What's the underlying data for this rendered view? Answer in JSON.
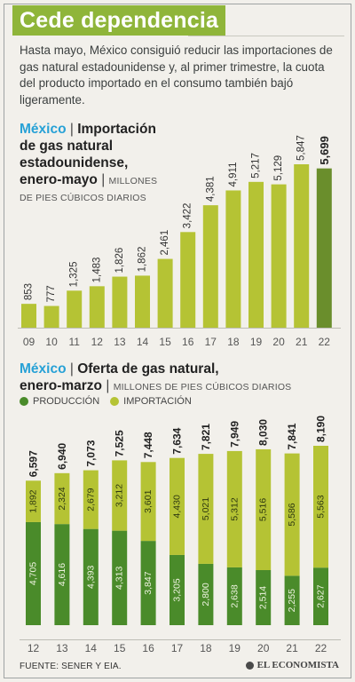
{
  "header": {
    "title": "Cede dependencia"
  },
  "intro": "Hasta mayo, México consiguió reducir las importaciones de gas natural estadounidense y, al primer trimestre, la cuota del producto importado en el consumo también bajó ligeramente.",
  "chart1": {
    "country": "México",
    "title_line1": "Importación",
    "title_line2": "de gas natural",
    "title_line3": "estadounidense,",
    "title_line4": "enero-mayo",
    "unit_a": "MILLONES",
    "unit_b": "DE PIES CÚBICOS DIARIOS"
  },
  "chart2": {
    "country": "México",
    "title_line1": "Oferta de gas natural,",
    "title_line2": "enero-marzo",
    "unit": "MILLONES DE PIES CÚBICOS DIARIOS",
    "legend_production": "PRODUCCIÓN",
    "legend_import": "IMPORTACIÓN"
  },
  "colors": {
    "import": "#b5c334",
    "production": "#4a8b2a",
    "highlight": "#6a8e2c",
    "accent": "#8fb53a",
    "country": "#27a1d6"
  },
  "chart_data": [
    {
      "type": "bar",
      "categories": [
        "09",
        "10",
        "11",
        "12",
        "13",
        "14",
        "15",
        "16",
        "17",
        "18",
        "19",
        "20",
        "21",
        "22"
      ],
      "values": [
        853,
        777,
        1325,
        1483,
        1826,
        1862,
        2461,
        3422,
        4381,
        4911,
        5217,
        5129,
        5847,
        5699
      ],
      "value_labels": [
        "853",
        "777",
        "1,325",
        "1,483",
        "1,826",
        "1,862",
        "2,461",
        "3,422",
        "4,381",
        "4,911",
        "5,217",
        "5,129",
        "5,847",
        "5,699"
      ],
      "highlight_last": true
    },
    {
      "type": "bar",
      "stacked": true,
      "categories": [
        "12",
        "13",
        "14",
        "15",
        "16",
        "17",
        "18",
        "19",
        "20",
        "21",
        "22"
      ],
      "series": [
        {
          "name": "PRODUCCIÓN",
          "values": [
            4705,
            4616,
            4393,
            4313,
            3847,
            3205,
            2800,
            2638,
            2514,
            2255,
            2627
          ],
          "labels": [
            "4,705",
            "4,616",
            "4,393",
            "4,313",
            "3,847",
            "3,205",
            "2,800",
            "2,638",
            "2,514",
            "2,255",
            "2,627"
          ]
        },
        {
          "name": "IMPORTACIÓN",
          "values": [
            1892,
            2324,
            2679,
            3212,
            3601,
            4430,
            5021,
            5312,
            5516,
            5586,
            5563
          ],
          "labels": [
            "1,892",
            "2,324",
            "2,679",
            "3,212",
            "3,601",
            "4,430",
            "5,021",
            "5,312",
            "5,516",
            "5,586",
            "5,563"
          ]
        }
      ],
      "totals": [
        6597,
        6940,
        7073,
        7525,
        7448,
        7634,
        7821,
        7949,
        8030,
        7841,
        8190
      ],
      "total_labels": [
        "6,597",
        "6,940",
        "7,073",
        "7,525",
        "7,448",
        "7,634",
        "7,821",
        "7,949",
        "8,030",
        "7,841",
        "8,190"
      ]
    }
  ],
  "footer": {
    "source": "FUENTE: SENER Y EIA.",
    "brand": "EL ECONOMISTA"
  }
}
